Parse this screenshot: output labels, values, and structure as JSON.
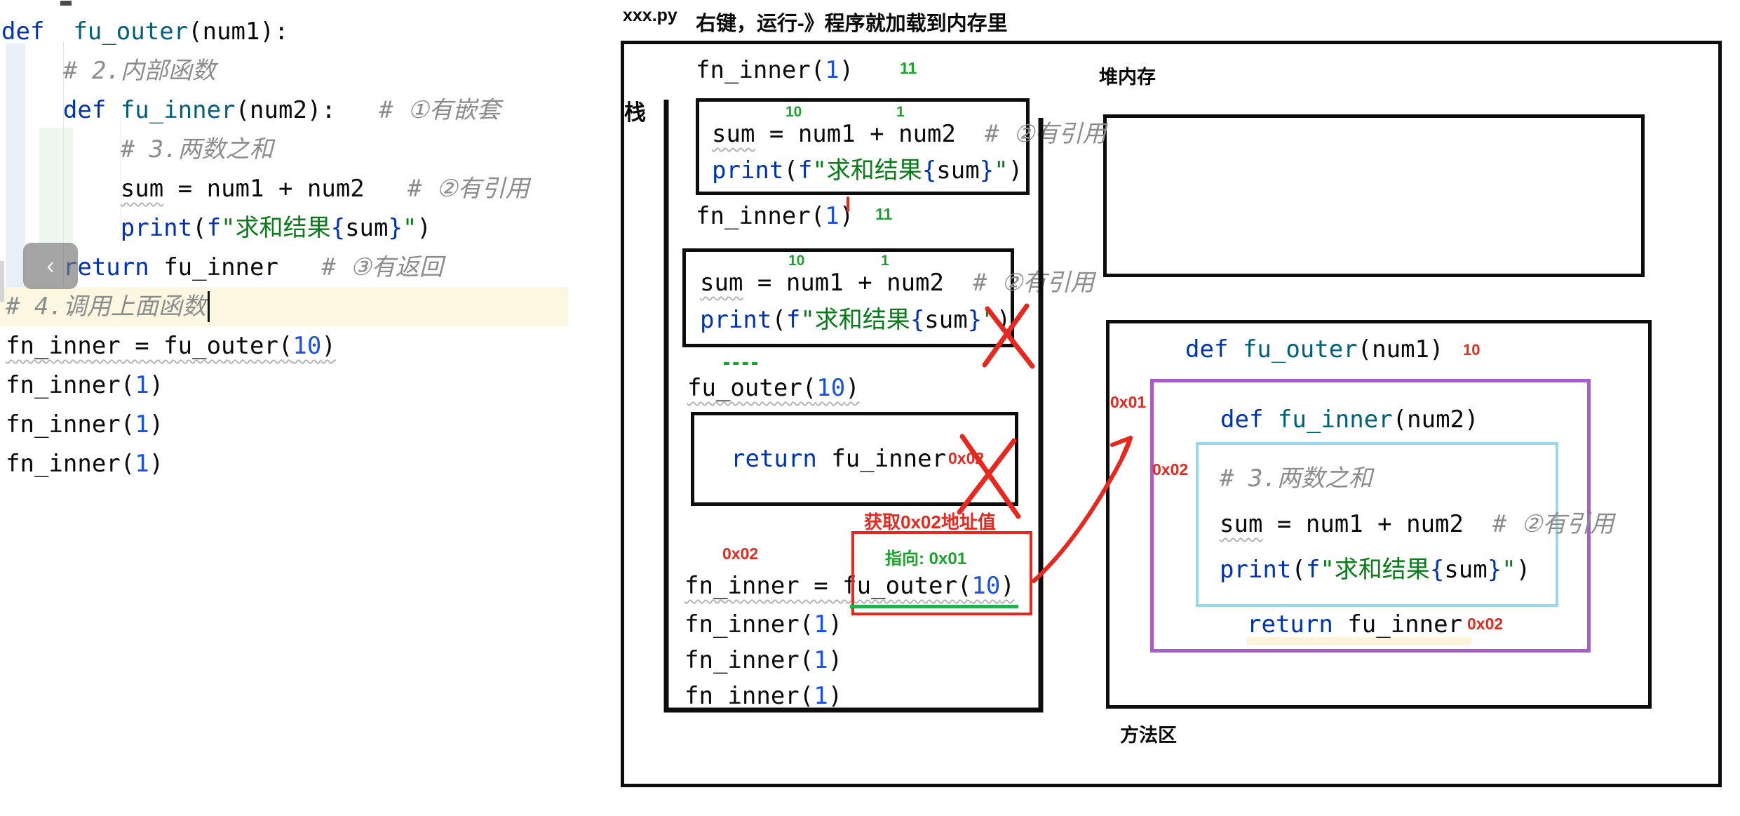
{
  "colors": {
    "accent_red": "#e8281e",
    "accent_green": "#18a52c",
    "accent_purple": "#a85cc9",
    "accent_cyan": "#99d9ec",
    "keyword_blue": "#0033b3",
    "number_blue": "#1750eb",
    "string_green": "#067d17",
    "comment_gray": "#8c8c8c"
  },
  "editor": {
    "back_button_glyph": "‹",
    "lines": [
      {
        "tokens": [
          [
            "kw",
            "def"
          ],
          [
            "",
            "  "
          ],
          [
            "fn",
            "fu_outer"
          ],
          [
            "",
            "(num1):"
          ]
        ]
      },
      {
        "tokens": [
          [
            "cm",
            "    # 2.内部函数"
          ]
        ]
      },
      {
        "tokens": [
          [
            "",
            "    "
          ],
          [
            "kw",
            "def"
          ],
          [
            "",
            " "
          ],
          [
            "fn",
            "fu_inner"
          ],
          [
            "",
            "(num2):"
          ],
          [
            "cm",
            "   # ①有嵌套"
          ]
        ]
      },
      {
        "tokens": [
          [
            "cm",
            "        # 3.两数之和"
          ]
        ]
      },
      {
        "tokens": [
          [
            "",
            "        "
          ],
          [
            "wv",
            "sum"
          ],
          [
            "",
            " = num1 + num2"
          ],
          [
            "cm",
            "   # ②有引用"
          ]
        ]
      },
      {
        "tokens": [
          [
            "",
            "        "
          ],
          [
            "kw",
            "print"
          ],
          [
            "",
            "("
          ],
          [
            "kw",
            "f"
          ],
          [
            "st",
            "\"求和结果"
          ],
          [
            "kw",
            "{"
          ],
          [
            "",
            "sum"
          ],
          [
            "kw",
            "}"
          ],
          [
            "st",
            "\""
          ],
          [
            "",
            ")"
          ]
        ]
      },
      {
        "tokens": [
          [
            "",
            "    "
          ],
          [
            "kw",
            "return"
          ],
          [
            "",
            " fu_inner"
          ],
          [
            "cm",
            "   # ③有返回"
          ]
        ]
      },
      {
        "tokens": [
          [
            "cm",
            "# 4.调用上面函数"
          ]
        ]
      },
      {
        "tokens": [
          [
            "wv",
            "fn_inner = fu_outer("
          ],
          [
            "num wv",
            "10"
          ],
          [
            "wv",
            ")"
          ]
        ]
      },
      {
        "tokens": [
          [
            "",
            "fn_inner("
          ],
          [
            "num",
            "1"
          ],
          [
            "",
            ")"
          ]
        ]
      },
      {
        "tokens": [
          [
            "",
            "fn_inner("
          ],
          [
            "num",
            "1"
          ],
          [
            "",
            ")"
          ]
        ]
      },
      {
        "tokens": [
          [
            "",
            "fn_inner("
          ],
          [
            "num",
            "1"
          ],
          [
            "",
            ")"
          ]
        ]
      }
    ]
  },
  "diagram": {
    "file_label": "xxx.py",
    "header_note": "右键，运行-》程序就加载到内存里",
    "stack_label": "栈",
    "heap_label": "堆内存",
    "method_area_label": "方法区",
    "stack": {
      "call_top": {
        "tokens": [
          [
            "",
            "fn_inner("
          ],
          [
            "num",
            "1"
          ],
          [
            "",
            ")"
          ]
        ]
      },
      "call_top_result": "11",
      "frame1": {
        "sup_num1": "10",
        "sup_num2": "1",
        "sum_line": {
          "tokens": [
            [
              "wv",
              "sum"
            ],
            [
              "",
              " = num1 + num2"
            ],
            [
              "cm",
              "  # ②有引用"
            ]
          ]
        },
        "print_line": {
          "tokens": [
            [
              "kw",
              "print"
            ],
            [
              "",
              "("
            ],
            [
              "kw",
              "f"
            ],
            [
              "st",
              "\"求和结果"
            ],
            [
              "kw",
              "{"
            ],
            [
              "",
              "sum"
            ],
            [
              "kw",
              "}"
            ],
            [
              "st",
              "\""
            ],
            [
              "",
              ")"
            ]
          ]
        }
      },
      "call_mid": {
        "tokens": [
          [
            "",
            "fn_inner("
          ],
          [
            "num",
            "1"
          ],
          [
            "",
            ")"
          ]
        ]
      },
      "call_mid_result": "11",
      "frame2": {
        "sup_num1": "10",
        "sup_num2": "1",
        "sum_line": {
          "tokens": [
            [
              "wv",
              "sum"
            ],
            [
              "",
              " = num1 + num2"
            ],
            [
              "cm",
              "  # ②有引用"
            ]
          ]
        },
        "print_line": {
          "tokens": [
            [
              "kw",
              "print"
            ],
            [
              "",
              "("
            ],
            [
              "kw",
              "f"
            ],
            [
              "st",
              "\"求和结果"
            ],
            [
              "kw",
              "{"
            ],
            [
              "",
              "sum"
            ],
            [
              "kw",
              "}"
            ],
            [
              "st",
              "\""
            ],
            [
              "",
              ")"
            ]
          ]
        }
      },
      "outer_call": {
        "tokens": [
          [
            "wv",
            "fu_outer("
          ],
          [
            "num wv",
            "10"
          ],
          [
            "wv",
            ")"
          ]
        ]
      },
      "frame3": {
        "return_line": {
          "tokens": [
            [
              "kw",
              "return"
            ],
            [
              "",
              " fu_inner"
            ]
          ]
        },
        "addr_label": "0x02"
      },
      "get_addr_note": "获取0x02地址值",
      "assign_addr_label": "0x02",
      "points_to_label": "指向: 0x01",
      "assign_line": {
        "tokens": [
          [
            "wv",
            "fn_inner = fu_outer("
          ],
          [
            "num wv",
            "10"
          ],
          [
            "wv",
            ")"
          ]
        ]
      },
      "call1": {
        "tokens": [
          [
            "",
            "fn_inner("
          ],
          [
            "num",
            "1"
          ],
          [
            "",
            ")"
          ]
        ]
      },
      "call2": {
        "tokens": [
          [
            "",
            "fn_inner("
          ],
          [
            "num",
            "1"
          ],
          [
            "",
            ")"
          ]
        ]
      },
      "call3": {
        "tokens": [
          [
            "",
            "fn_inner("
          ],
          [
            "num",
            "1"
          ],
          [
            "",
            ")"
          ]
        ]
      }
    },
    "method_area": {
      "outer_def": {
        "tokens": [
          [
            "kw",
            "def"
          ],
          [
            "",
            " "
          ],
          [
            "fn",
            "fu_outer"
          ],
          [
            "",
            "(num1)"
          ]
        ]
      },
      "outer_def_arg": "10",
      "addr_outer": "0x01",
      "inner_def": {
        "tokens": [
          [
            "kw",
            "def"
          ],
          [
            "",
            " "
          ],
          [
            "fn",
            "fu_inner"
          ],
          [
            "",
            "(num2)"
          ]
        ]
      },
      "addr_inner": "0x02",
      "body_comment": {
        "tokens": [
          [
            "cm",
            "# 3.两数之和"
          ]
        ]
      },
      "body_sum": {
        "tokens": [
          [
            "wv",
            "sum"
          ],
          [
            "",
            " = num1 + num2"
          ],
          [
            "cm",
            "  # ②有引用"
          ]
        ]
      },
      "body_print": {
        "tokens": [
          [
            "kw",
            "print"
          ],
          [
            "",
            "("
          ],
          [
            "kw",
            "f"
          ],
          [
            "st",
            "\"求和结果"
          ],
          [
            "kw",
            "{"
          ],
          [
            "",
            "sum"
          ],
          [
            "kw",
            "}"
          ],
          [
            "st",
            "\""
          ],
          [
            "",
            ")"
          ]
        ]
      },
      "return_line": {
        "tokens": [
          [
            "kw",
            "return"
          ],
          [
            "",
            " fu_inner"
          ]
        ]
      },
      "return_addr": "0x02"
    }
  }
}
